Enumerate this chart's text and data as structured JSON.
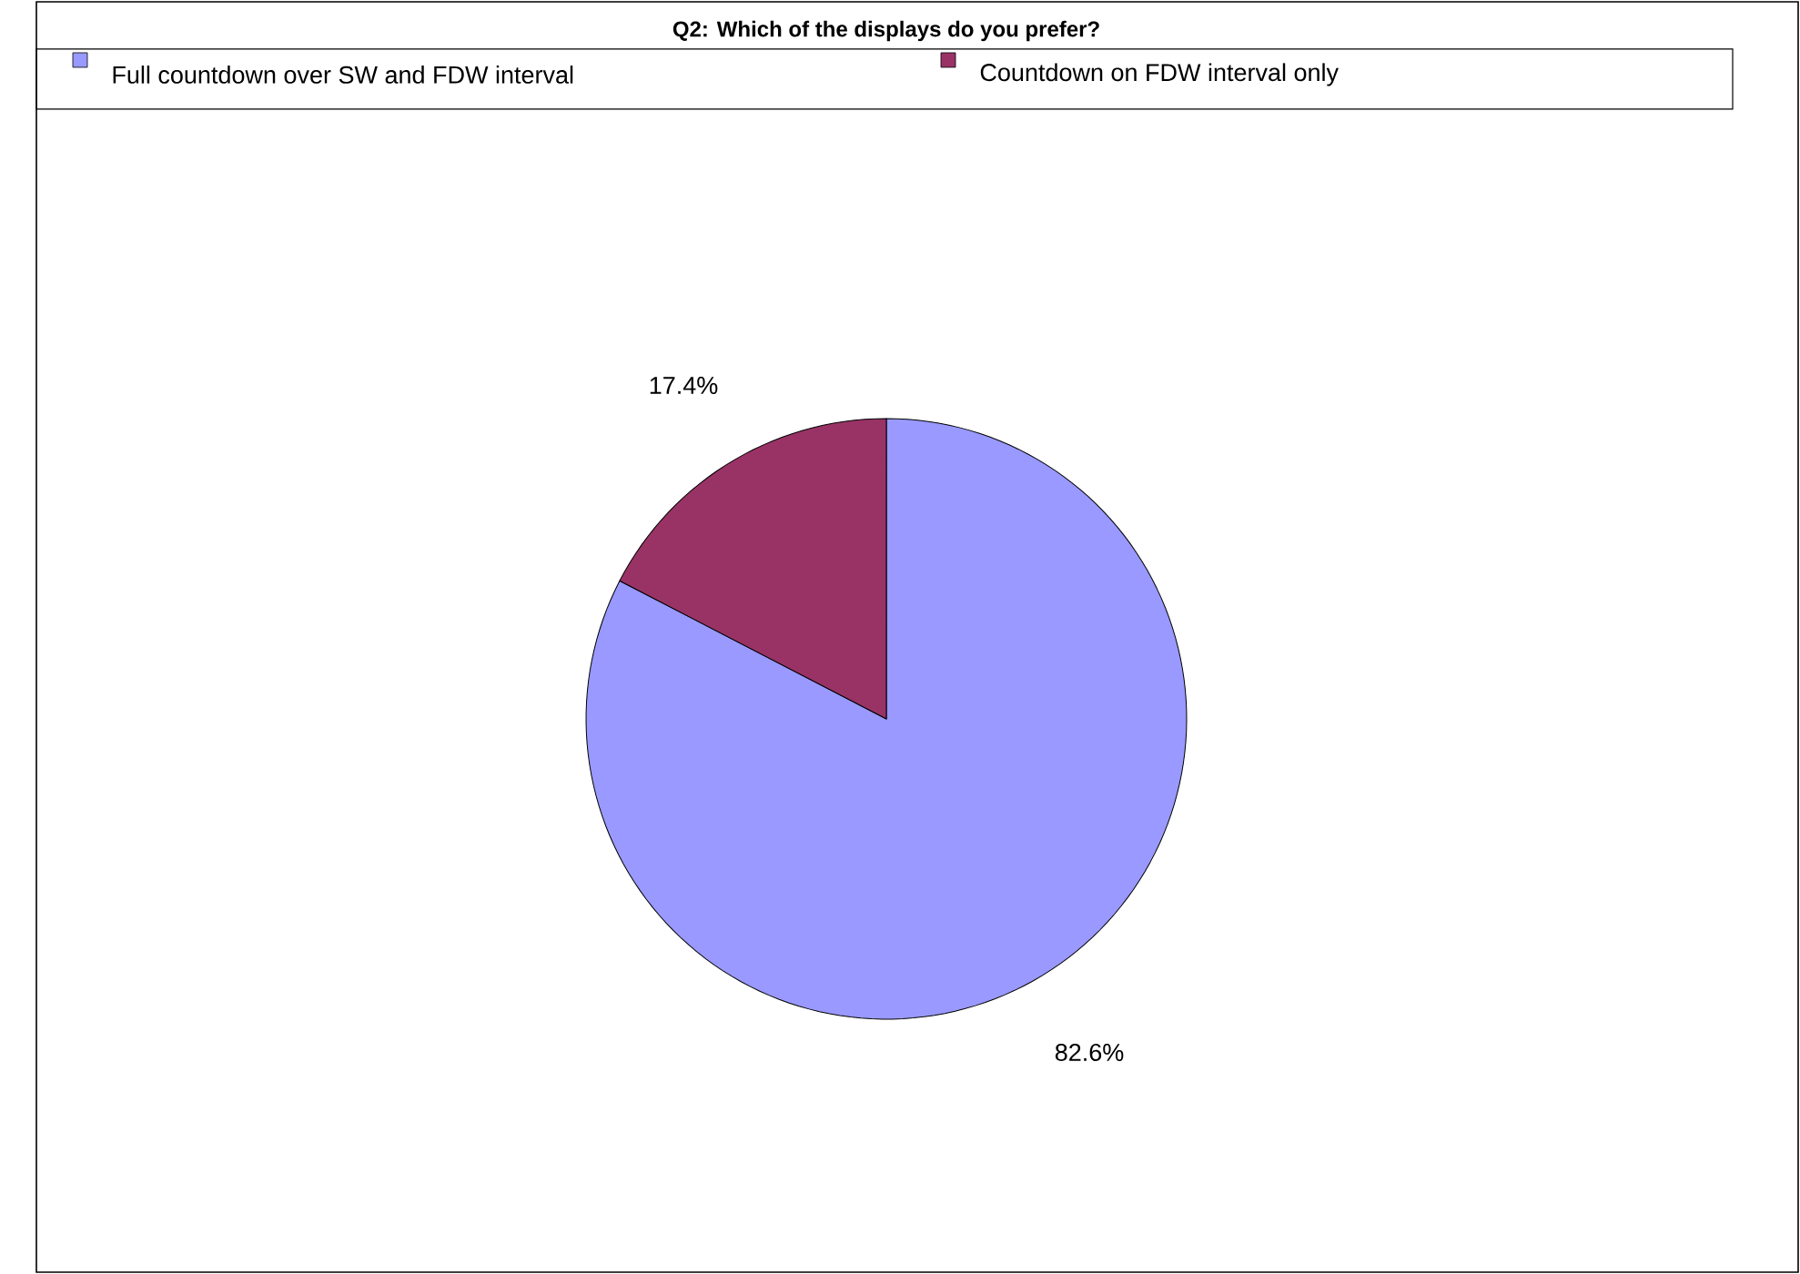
{
  "chart_data": {
    "type": "pie",
    "title": "Q2: Which of the displays do you prefer?",
    "categories": [
      "Full countdown over SW and FDW interval",
      "Countdown on FDW interval only"
    ],
    "values": [
      82.6,
      17.4
    ],
    "colors": [
      "#9999ff",
      "#993366"
    ],
    "value_labels": [
      "82.6%",
      "17.4%"
    ],
    "legend": "top"
  }
}
